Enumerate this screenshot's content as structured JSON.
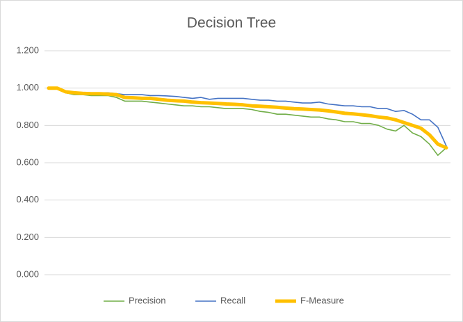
{
  "chart_data": {
    "type": "line",
    "title": "Decision Tree",
    "categories": [
      null,
      null,
      null,
      null,
      null,
      null,
      null,
      null,
      null,
      null,
      null,
      null,
      null,
      null,
      null,
      null,
      null,
      null,
      null,
      null,
      null,
      null,
      null,
      null,
      null,
      null,
      null,
      null,
      null,
      null,
      null,
      null,
      null,
      null,
      null,
      null,
      null,
      null,
      null,
      null,
      null,
      null,
      null,
      null,
      null,
      null,
      null,
      null
    ],
    "series": [
      {
        "name": "Precision",
        "color": "#70ad47",
        "values": [
          1.0,
          1.0,
          0.975,
          0.965,
          0.965,
          0.96,
          0.96,
          0.96,
          0.95,
          0.93,
          0.93,
          0.93,
          0.925,
          0.92,
          0.915,
          0.91,
          0.905,
          0.905,
          0.9,
          0.9,
          0.895,
          0.89,
          0.89,
          0.89,
          0.885,
          0.875,
          0.87,
          0.86,
          0.86,
          0.855,
          0.85,
          0.845,
          0.845,
          0.835,
          0.83,
          0.82,
          0.82,
          0.81,
          0.81,
          0.8,
          0.78,
          0.77,
          0.8,
          0.76,
          0.74,
          0.7,
          0.64,
          0.68
        ]
      },
      {
        "name": "Recall",
        "color": "#4472c4",
        "values": [
          1.0,
          1.0,
          0.98,
          0.975,
          0.975,
          0.975,
          0.975,
          0.975,
          0.97,
          0.965,
          0.965,
          0.965,
          0.96,
          0.96,
          0.958,
          0.955,
          0.95,
          0.945,
          0.95,
          0.94,
          0.945,
          0.945,
          0.945,
          0.945,
          0.94,
          0.935,
          0.935,
          0.93,
          0.93,
          0.925,
          0.92,
          0.92,
          0.925,
          0.915,
          0.91,
          0.905,
          0.905,
          0.9,
          0.9,
          0.89,
          0.89,
          0.875,
          0.88,
          0.86,
          0.83,
          0.83,
          0.79,
          0.69
        ]
      },
      {
        "name": "F-Measure",
        "color": "#ffc000",
        "values": [
          1.0,
          1.0,
          0.98,
          0.975,
          0.972,
          0.97,
          0.97,
          0.968,
          0.965,
          0.95,
          0.948,
          0.945,
          0.945,
          0.94,
          0.935,
          0.932,
          0.93,
          0.925,
          0.922,
          0.92,
          0.918,
          0.915,
          0.913,
          0.91,
          0.905,
          0.903,
          0.9,
          0.897,
          0.893,
          0.89,
          0.888,
          0.885,
          0.883,
          0.878,
          0.872,
          0.865,
          0.862,
          0.857,
          0.852,
          0.845,
          0.84,
          0.83,
          0.815,
          0.8,
          0.785,
          0.75,
          0.7,
          0.68
        ]
      }
    ],
    "ylim": [
      0,
      1.2
    ],
    "yticks": [
      {
        "value": 0,
        "label": "0.000"
      },
      {
        "value": 0.2,
        "label": "0.200"
      },
      {
        "value": 0.4,
        "label": "0.400"
      },
      {
        "value": 0.6,
        "label": "0.600"
      },
      {
        "value": 0.8,
        "label": "0.800"
      },
      {
        "value": 1.0,
        "label": "1.000"
      },
      {
        "value": 1.2,
        "label": "1.200"
      }
    ],
    "grid": true,
    "legend": "bottom"
  }
}
